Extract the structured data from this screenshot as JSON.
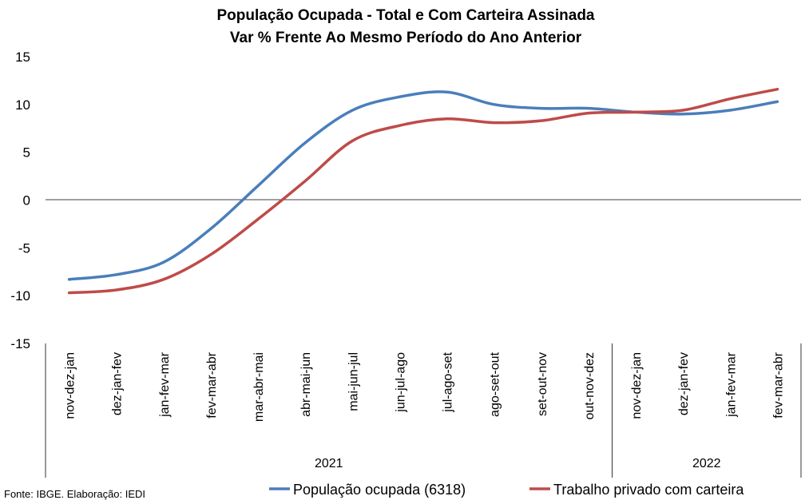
{
  "chart_data": {
    "type": "line",
    "title": "População Ocupada - Total e Com Carteira Assinada",
    "subtitle": "Var % Frente Ao Mesmo Período do Ano Anterior",
    "ylim": [
      -15,
      15
    ],
    "yticks": [
      "15",
      "10",
      "5",
      "0",
      "-5",
      "-10",
      "-15"
    ],
    "ytick_values": [
      15,
      10,
      5,
      0,
      -5,
      -10,
      -15
    ],
    "categories": [
      "nov-dez-jan",
      "dez-jan-fev",
      "jan-fev-mar",
      "fev-mar-abr",
      "mar-abr-mai",
      "abr-mai-jun",
      "mai-jun-jul",
      "jun-jul-ago",
      "jul-ago-set",
      "ago-set-out",
      "set-out-nov",
      "out-nov-dez",
      "nov-dez-jan",
      "dez-jan-fev",
      "jan-fev-mar",
      "fev-mar-abr"
    ],
    "year_groups": [
      {
        "label": "2021",
        "start": 0,
        "end": 11
      },
      {
        "label": "2022",
        "start": 12,
        "end": 15
      }
    ],
    "series": [
      {
        "name": "População ocupada (6318)",
        "color": "#4a7ebb",
        "values": [
          -8.3,
          -7.8,
          -6.5,
          -3.0,
          1.5,
          6.0,
          9.4,
          10.8,
          11.3,
          10.0,
          9.6,
          9.6,
          9.2,
          9.0,
          9.4,
          10.3
        ]
      },
      {
        "name": "Trabalho privado com carteira",
        "color": "#be4b48",
        "values": [
          -9.7,
          -9.4,
          -8.3,
          -5.7,
          -2.0,
          2.0,
          6.2,
          7.8,
          8.5,
          8.1,
          8.3,
          9.1,
          9.2,
          9.4,
          10.6,
          11.6
        ]
      }
    ],
    "grid": false,
    "legend_position": "bottom"
  },
  "source_note": "Fonte: IBGE. Elaboração: IEDI"
}
